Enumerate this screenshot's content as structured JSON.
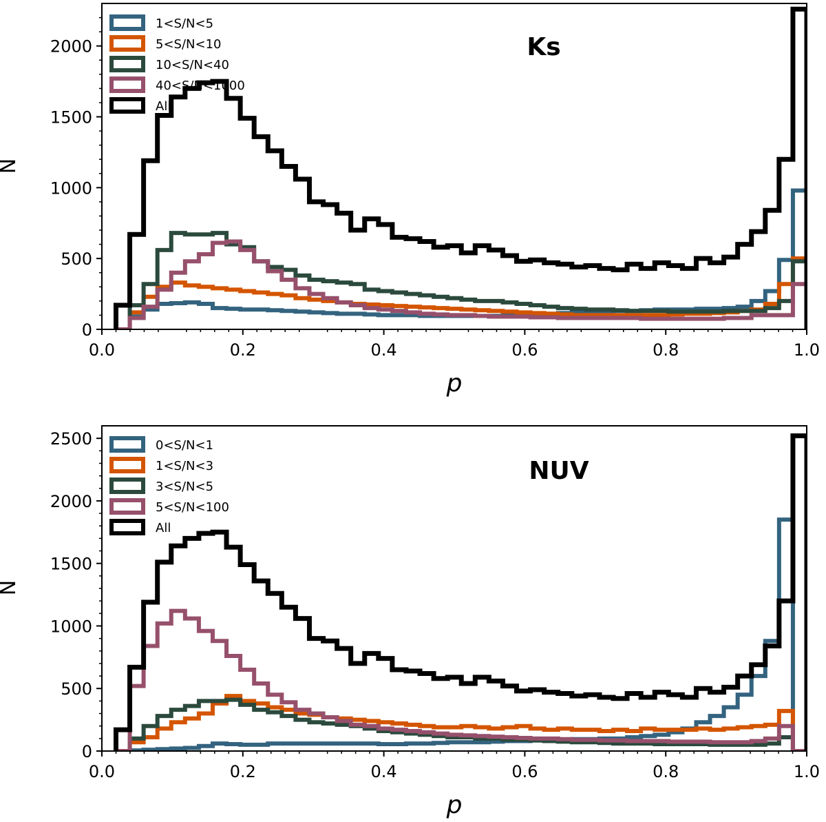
{
  "chart_data": [
    {
      "type": "histogram-step",
      "title": "Ks",
      "xlabel": "p",
      "ylabel": "N",
      "xlim": [
        0.0,
        1.0
      ],
      "ylim": [
        0,
        2300
      ],
      "xticks": [
        "0.0",
        "0.2",
        "0.4",
        "0.6",
        "0.8",
        "1.0"
      ],
      "yticks": [
        "0",
        "500",
        "1000",
        "1500",
        "2000"
      ],
      "legend": [
        "1<S/N<5",
        "5<S/N<10",
        "10<S/N<40",
        "40<S/N<1000",
        "All"
      ],
      "series": [
        {
          "name": "1<S/N<5",
          "color": "#33637f",
          "values": [
            0,
            90,
            140,
            180,
            185,
            190,
            180,
            150,
            145,
            140,
            140,
            135,
            130,
            125,
            120,
            115,
            110,
            110,
            105,
            100,
            100,
            100,
            95,
            95,
            95,
            95,
            95,
            95,
            100,
            100,
            110,
            110,
            115,
            120,
            120,
            125,
            130,
            130,
            135,
            140,
            140,
            140,
            145,
            145,
            150,
            160,
            200,
            270,
            490,
            980
          ]
        },
        {
          "name": "5<S/N<10",
          "color": "#d45500",
          "values": [
            0,
            120,
            230,
            300,
            330,
            310,
            300,
            290,
            280,
            270,
            260,
            250,
            240,
            220,
            210,
            200,
            190,
            180,
            175,
            170,
            165,
            160,
            155,
            150,
            145,
            140,
            135,
            130,
            125,
            120,
            115,
            110,
            105,
            100,
            100,
            100,
            100,
            100,
            100,
            100,
            105,
            110,
            110,
            115,
            120,
            130,
            140,
            180,
            320,
            500
          ]
        },
        {
          "name": "10<S/N<40",
          "color": "#2b4a3d",
          "values": [
            0,
            170,
            320,
            560,
            680,
            670,
            670,
            680,
            600,
            580,
            480,
            440,
            420,
            380,
            350,
            340,
            330,
            320,
            280,
            270,
            260,
            250,
            240,
            230,
            220,
            210,
            200,
            200,
            190,
            180,
            170,
            160,
            150,
            145,
            140,
            140,
            135,
            130,
            130,
            130,
            125,
            125,
            125,
            125,
            130,
            130,
            130,
            150,
            200,
            480
          ]
        },
        {
          "name": "40<S/N<1000",
          "color": "#96506b",
          "values": [
            0,
            80,
            160,
            280,
            400,
            480,
            530,
            610,
            620,
            560,
            480,
            410,
            350,
            290,
            250,
            220,
            190,
            170,
            150,
            140,
            130,
            120,
            110,
            105,
            100,
            100,
            95,
            90,
            90,
            90,
            85,
            85,
            80,
            80,
            80,
            80,
            80,
            80,
            75,
            75,
            75,
            75,
            75,
            75,
            80,
            80,
            100,
            100,
            100,
            320
          ]
        },
        {
          "name": "All",
          "color": "#000000",
          "values": [
            170,
            670,
            1190,
            1510,
            1640,
            1700,
            1740,
            1750,
            1630,
            1490,
            1360,
            1260,
            1150,
            1060,
            900,
            880,
            820,
            700,
            780,
            740,
            650,
            640,
            620,
            580,
            590,
            540,
            590,
            560,
            520,
            480,
            490,
            470,
            460,
            440,
            450,
            430,
            420,
            460,
            430,
            470,
            450,
            430,
            500,
            470,
            510,
            600,
            690,
            840,
            1200,
            2260
          ]
        }
      ]
    },
    {
      "type": "histogram-step",
      "title": "NUV",
      "xlabel": "p",
      "ylabel": "N",
      "xlim": [
        0.0,
        1.0
      ],
      "ylim": [
        0,
        2600
      ],
      "xticks": [
        "0.0",
        "0.2",
        "0.4",
        "0.6",
        "0.8",
        "1.0"
      ],
      "yticks": [
        "0",
        "500",
        "1000",
        "1500",
        "2000",
        "2500"
      ],
      "legend": [
        "0<S/N<1",
        "1<S/N<3",
        "3<S/N<5",
        "5<S/N<100",
        "All"
      ],
      "series": [
        {
          "name": "0<S/N<1",
          "color": "#33637f",
          "values": [
            0,
            5,
            10,
            15,
            20,
            25,
            40,
            60,
            55,
            50,
            50,
            60,
            60,
            60,
            60,
            60,
            60,
            60,
            60,
            55,
            55,
            60,
            60,
            65,
            70,
            70,
            70,
            75,
            80,
            80,
            85,
            85,
            90,
            95,
            95,
            100,
            100,
            110,
            120,
            130,
            150,
            180,
            230,
            280,
            350,
            450,
            600,
            880,
            1850,
            0
          ]
        },
        {
          "name": "1<S/N<3",
          "color": "#d45500",
          "values": [
            0,
            70,
            110,
            180,
            230,
            260,
            300,
            380,
            440,
            400,
            380,
            350,
            330,
            300,
            290,
            270,
            260,
            250,
            240,
            230,
            220,
            210,
            200,
            190,
            190,
            200,
            190,
            180,
            190,
            200,
            180,
            170,
            180,
            170,
            170,
            160,
            170,
            160,
            180,
            170,
            170,
            170,
            180,
            170,
            180,
            190,
            200,
            210,
            320,
            0
          ]
        },
        {
          "name": "3<S/N<5",
          "color": "#2b4a3d",
          "values": [
            0,
            100,
            200,
            280,
            330,
            360,
            400,
            400,
            410,
            370,
            330,
            310,
            280,
            250,
            230,
            220,
            210,
            200,
            180,
            160,
            150,
            140,
            130,
            120,
            110,
            110,
            100,
            100,
            90,
            90,
            85,
            80,
            75,
            70,
            70,
            65,
            60,
            60,
            60,
            55,
            55,
            55,
            55,
            50,
            50,
            50,
            50,
            60,
            110,
            0
          ]
        },
        {
          "name": "5<S/N<100",
          "color": "#96506b",
          "values": [
            0,
            520,
            840,
            1020,
            1120,
            1060,
            960,
            880,
            760,
            650,
            540,
            450,
            390,
            330,
            300,
            270,
            240,
            210,
            200,
            180,
            170,
            160,
            150,
            140,
            130,
            125,
            120,
            115,
            110,
            105,
            100,
            100,
            95,
            90,
            90,
            85,
            85,
            80,
            80,
            80,
            75,
            75,
            75,
            70,
            70,
            70,
            80,
            100,
            200,
            0
          ]
        },
        {
          "name": "All",
          "color": "#000000",
          "values": [
            170,
            670,
            1190,
            1510,
            1640,
            1700,
            1740,
            1750,
            1630,
            1490,
            1360,
            1260,
            1150,
            1060,
            900,
            880,
            820,
            700,
            780,
            740,
            650,
            640,
            620,
            580,
            590,
            540,
            590,
            560,
            520,
            480,
            490,
            470,
            460,
            440,
            450,
            430,
            420,
            460,
            430,
            470,
            450,
            430,
            500,
            470,
            510,
            600,
            690,
            840,
            1200,
            2520
          ]
        }
      ]
    }
  ]
}
